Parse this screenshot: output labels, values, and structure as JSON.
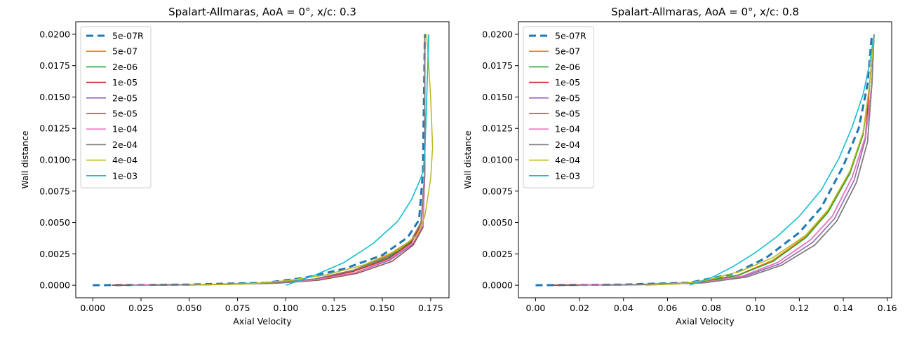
{
  "chart_data": [
    {
      "type": "line",
      "title": "Spalart-Allmaras, AoA = 0°, x/c: 0.3",
      "xlabel": "Axial Velocity",
      "ylabel": "Wall distance",
      "xlim": [
        -0.0088,
        0.1845
      ],
      "ylim": [
        -0.001,
        0.021
      ],
      "xticks": [
        "0.000",
        "0.025",
        "0.050",
        "0.075",
        "0.100",
        "0.125",
        "0.150",
        "0.175"
      ],
      "xtick_values": [
        0,
        0.025,
        0.05,
        0.075,
        0.1,
        0.125,
        0.15,
        0.175
      ],
      "yticks": [
        "0.0000",
        "0.0025",
        "0.0050",
        "0.0075",
        "0.0100",
        "0.0125",
        "0.0150",
        "0.0175",
        "0.0200"
      ],
      "ytick_values": [
        0,
        0.0025,
        0.005,
        0.0075,
        0.01,
        0.0125,
        0.015,
        0.0175,
        0.02
      ],
      "legend_position": "upper-left",
      "series": [
        {
          "name": "5e-07R",
          "color": "#1f77b4",
          "dashed": true,
          "x": [
            0.0,
            0.05,
            0.09,
            0.11,
            0.13,
            0.15,
            0.163,
            0.169,
            0.171,
            0.172
          ],
          "y": [
            0.0,
            5e-05,
            0.0002,
            0.0006,
            0.0013,
            0.0024,
            0.0038,
            0.0052,
            0.009,
            0.02
          ]
        },
        {
          "name": "5e-07",
          "color": "#ff7f0e",
          "x": [
            0.01,
            0.06,
            0.095,
            0.115,
            0.135,
            0.152,
            0.165,
            0.17,
            0.172,
            0.172
          ],
          "y": [
            0.0,
            5e-05,
            0.0002,
            0.0005,
            0.0012,
            0.0023,
            0.0036,
            0.005,
            0.009,
            0.02
          ]
        },
        {
          "name": "2e-06",
          "color": "#2ca02c",
          "x": [
            0.01,
            0.06,
            0.095,
            0.115,
            0.135,
            0.153,
            0.165,
            0.17,
            0.172,
            0.172
          ],
          "y": [
            0.0,
            5e-05,
            0.0002,
            0.0005,
            0.0012,
            0.0022,
            0.0035,
            0.005,
            0.009,
            0.02
          ]
        },
        {
          "name": "1e-05",
          "color": "#d62728",
          "x": [
            0.01,
            0.06,
            0.095,
            0.115,
            0.135,
            0.153,
            0.165,
            0.17,
            0.172,
            0.172
          ],
          "y": [
            0.0,
            4e-05,
            0.00018,
            0.00045,
            0.0011,
            0.0021,
            0.0034,
            0.0048,
            0.009,
            0.02
          ]
        },
        {
          "name": "2e-05",
          "color": "#9467bd",
          "x": [
            0.01,
            0.06,
            0.095,
            0.116,
            0.136,
            0.154,
            0.166,
            0.171,
            0.172,
            0.172
          ],
          "y": [
            0.0,
            4e-05,
            0.00017,
            0.00042,
            0.001,
            0.002,
            0.0033,
            0.0047,
            0.009,
            0.02
          ]
        },
        {
          "name": "5e-05",
          "color": "#8c564b",
          "x": [
            0.01,
            0.06,
            0.096,
            0.117,
            0.137,
            0.155,
            0.166,
            0.171,
            0.172,
            0.172
          ],
          "y": [
            0.0,
            4e-05,
            0.00016,
            0.0004,
            0.00095,
            0.0019,
            0.0032,
            0.0046,
            0.009,
            0.02
          ]
        },
        {
          "name": "1e-04",
          "color": "#e377c2",
          "x": [
            0.02,
            0.06,
            0.096,
            0.116,
            0.136,
            0.154,
            0.166,
            0.171,
            0.172,
            0.172
          ],
          "y": [
            0.0,
            4e-05,
            0.00018,
            0.00045,
            0.001,
            0.0021,
            0.0034,
            0.0048,
            0.009,
            0.02
          ]
        },
        {
          "name": "2e-04",
          "color": "#7f7f7f",
          "x": [
            0.03,
            0.07,
            0.097,
            0.115,
            0.135,
            0.153,
            0.165,
            0.17,
            0.172,
            0.172
          ],
          "y": [
            0.0,
            6e-05,
            0.0002,
            0.0005,
            0.0012,
            0.0023,
            0.0036,
            0.005,
            0.009,
            0.02
          ]
        },
        {
          "name": "4e-04",
          "color": "#bcbd22",
          "x": [
            0.05,
            0.08,
            0.1,
            0.12,
            0.14,
            0.158,
            0.168,
            0.172,
            0.175,
            0.176,
            0.175,
            0.173
          ],
          "y": [
            0.0,
            0.0001,
            0.00035,
            0.0008,
            0.0016,
            0.0028,
            0.004,
            0.0055,
            0.0085,
            0.011,
            0.015,
            0.02
          ]
        },
        {
          "name": "1e-03",
          "color": "#17becf",
          "x": [
            0.1,
            0.115,
            0.13,
            0.145,
            0.158,
            0.165,
            0.169,
            0.171,
            0.172,
            0.173,
            0.174
          ],
          "y": [
            0.0,
            0.0008,
            0.0018,
            0.0033,
            0.0051,
            0.0068,
            0.0082,
            0.009,
            0.0105,
            0.015,
            0.02
          ]
        }
      ]
    },
    {
      "type": "line",
      "title": "Spalart-Allmaras, AoA = 0°, x/c: 0.8",
      "xlabel": "Axial Velocity",
      "ylabel": "Wall distance",
      "xlim": [
        -0.0078,
        0.162
      ],
      "ylim": [
        -0.001,
        0.021
      ],
      "xticks": [
        "0.00",
        "0.02",
        "0.04",
        "0.06",
        "0.08",
        "0.10",
        "0.12",
        "0.14",
        "0.16"
      ],
      "xtick_values": [
        0,
        0.02,
        0.04,
        0.06,
        0.08,
        0.1,
        0.12,
        0.14,
        0.16
      ],
      "yticks": [
        "0.0000",
        "0.0025",
        "0.0050",
        "0.0075",
        "0.0100",
        "0.0125",
        "0.0150",
        "0.0175",
        "0.0200"
      ],
      "ytick_values": [
        0,
        0.0025,
        0.005,
        0.0075,
        0.01,
        0.0125,
        0.015,
        0.0175,
        0.02
      ],
      "legend_position": "upper-left",
      "series": [
        {
          "name": "5e-07R",
          "color": "#1f77b4",
          "dashed": true,
          "x": [
            0.0,
            0.04,
            0.07,
            0.09,
            0.105,
            0.12,
            0.13,
            0.14,
            0.147,
            0.151,
            0.153
          ],
          "y": [
            0.0,
            5e-05,
            0.0002,
            0.0009,
            0.0022,
            0.0042,
            0.0062,
            0.0095,
            0.0125,
            0.016,
            0.02
          ]
        },
        {
          "name": "5e-07",
          "color": "#ff7f0e",
          "x": [
            0.008,
            0.045,
            0.072,
            0.092,
            0.108,
            0.123,
            0.133,
            0.143,
            0.149,
            0.152,
            0.154
          ],
          "y": [
            0.0,
            5e-05,
            0.0002,
            0.0008,
            0.002,
            0.0039,
            0.0059,
            0.009,
            0.012,
            0.016,
            0.02
          ]
        },
        {
          "name": "2e-06",
          "color": "#2ca02c",
          "x": [
            0.008,
            0.045,
            0.072,
            0.092,
            0.108,
            0.123,
            0.133,
            0.143,
            0.149,
            0.152,
            0.154
          ],
          "y": [
            0.0,
            5e-05,
            0.0002,
            0.00078,
            0.0019,
            0.0038,
            0.0058,
            0.0089,
            0.012,
            0.016,
            0.02
          ]
        },
        {
          "name": "1e-05",
          "color": "#d62728",
          "x": [
            0.008,
            0.046,
            0.074,
            0.094,
            0.11,
            0.125,
            0.135,
            0.144,
            0.15,
            0.152,
            0.154
          ],
          "y": [
            0.0,
            5e-05,
            0.0002,
            0.00072,
            0.0018,
            0.0036,
            0.0055,
            0.0086,
            0.0118,
            0.016,
            0.02
          ]
        },
        {
          "name": "2e-05",
          "color": "#9467bd",
          "x": [
            0.008,
            0.047,
            0.075,
            0.095,
            0.111,
            0.126,
            0.136,
            0.145,
            0.15,
            0.153,
            0.154
          ],
          "y": [
            0.0,
            5e-05,
            0.0002,
            0.0007,
            0.0017,
            0.0034,
            0.0053,
            0.0084,
            0.0116,
            0.016,
            0.02
          ]
        },
        {
          "name": "5e-05",
          "color": "#8c564b",
          "x": [
            0.008,
            0.048,
            0.076,
            0.096,
            0.112,
            0.127,
            0.137,
            0.146,
            0.151,
            0.153,
            0.154
          ],
          "y": [
            0.0,
            4e-05,
            0.00018,
            0.00065,
            0.0016,
            0.0032,
            0.0051,
            0.0082,
            0.0114,
            0.016,
            0.02
          ]
        },
        {
          "name": "1e-04",
          "color": "#e377c2",
          "x": [
            0.02,
            0.05,
            0.075,
            0.094,
            0.11,
            0.125,
            0.135,
            0.144,
            0.15,
            0.153,
            0.154
          ],
          "y": [
            0.0,
            5e-05,
            0.0002,
            0.00072,
            0.0018,
            0.0036,
            0.0055,
            0.0086,
            0.0118,
            0.016,
            0.02
          ]
        },
        {
          "name": "2e-04",
          "color": "#7f7f7f",
          "x": [
            0.03,
            0.055,
            0.077,
            0.096,
            0.112,
            0.127,
            0.137,
            0.146,
            0.151,
            0.153,
            0.154
          ],
          "y": [
            0.0,
            6e-05,
            0.0002,
            0.00065,
            0.0016,
            0.0032,
            0.0051,
            0.0082,
            0.0114,
            0.016,
            0.02
          ]
        },
        {
          "name": "4e-04",
          "color": "#bcbd22",
          "x": [
            0.05,
            0.065,
            0.078,
            0.093,
            0.108,
            0.123,
            0.133,
            0.143,
            0.149,
            0.152,
            0.154
          ],
          "y": [
            0.0,
            0.0001,
            0.0004,
            0.0011,
            0.0022,
            0.004,
            0.006,
            0.0091,
            0.0122,
            0.016,
            0.02
          ]
        },
        {
          "name": "1e-03",
          "color": "#17becf",
          "x": [
            0.07,
            0.08,
            0.09,
            0.1,
            0.11,
            0.12,
            0.13,
            0.138,
            0.144,
            0.149,
            0.152,
            0.154
          ],
          "y": [
            0.0,
            0.0006,
            0.0015,
            0.0026,
            0.0039,
            0.0055,
            0.0076,
            0.0101,
            0.0126,
            0.0152,
            0.0177,
            0.02
          ]
        }
      ]
    }
  ]
}
